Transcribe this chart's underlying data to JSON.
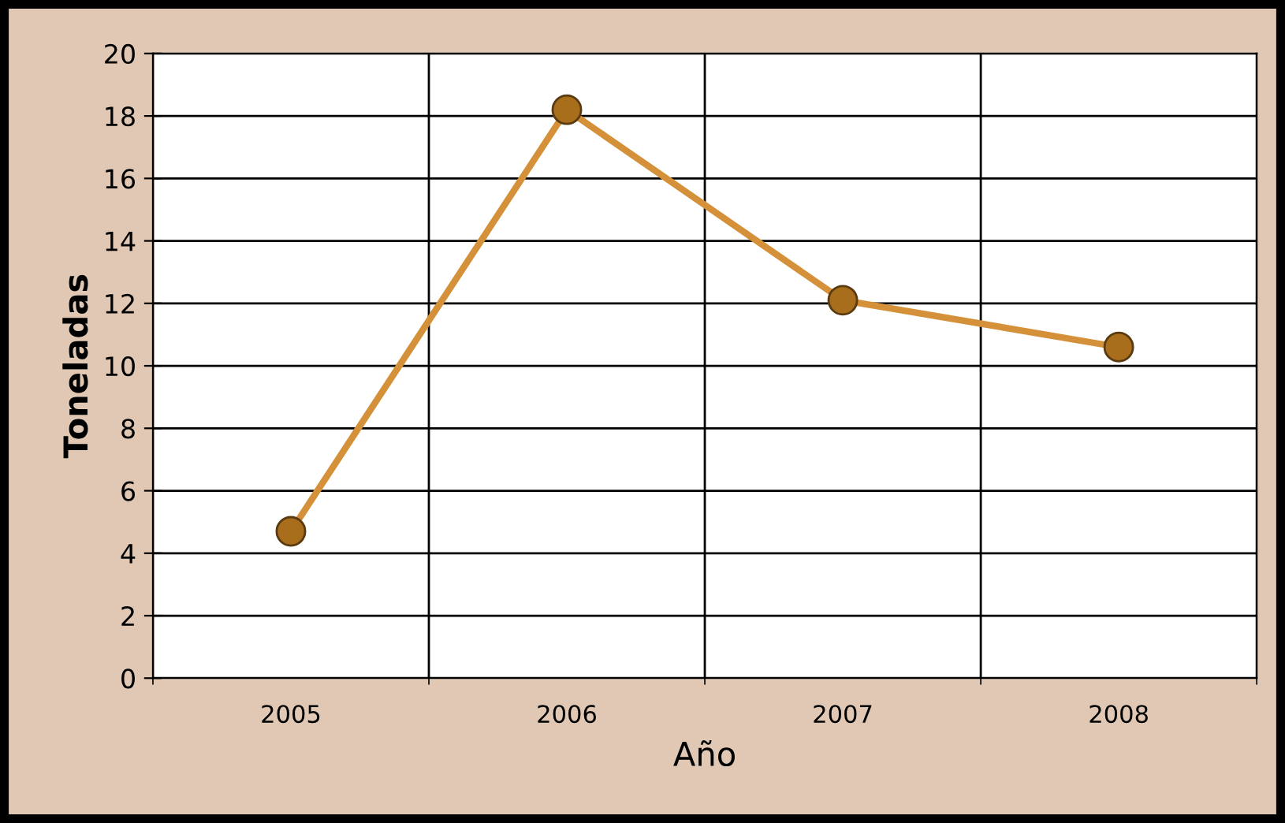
{
  "chart_data": {
    "type": "line",
    "xlabel": "Año",
    "ylabel": "Toneladas",
    "categories": [
      "2005",
      "2006",
      "2007",
      "2008"
    ],
    "series": [
      {
        "color": "#d4913a",
        "values": [
          4.7,
          18.2,
          12.1,
          10.6
        ]
      }
    ],
    "ylim": [
      0,
      20
    ],
    "yticks": [
      0,
      2,
      4,
      6,
      8,
      10,
      12,
      14,
      16,
      18,
      20
    ],
    "grid": true,
    "marker": "circle",
    "line_style": "solid",
    "legend": false
  }
}
